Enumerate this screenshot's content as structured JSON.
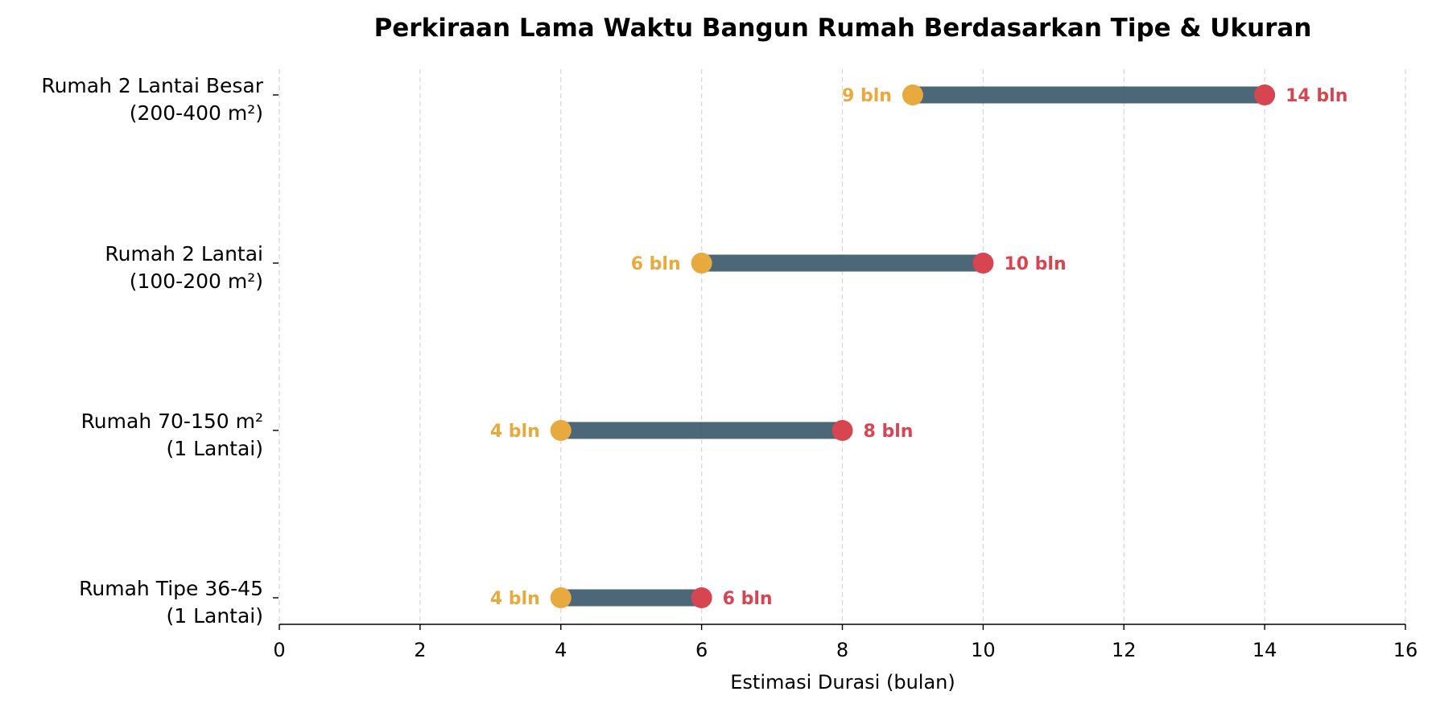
{
  "chart_data": {
    "type": "dumbbell",
    "title": "Perkiraan Lama Waktu Bangun Rumah Berdasarkan Tipe & Ukuran",
    "xlabel": "Estimasi Durasi (bulan)",
    "ylabel": "",
    "xlim": [
      0,
      16
    ],
    "xticks": [
      0,
      2,
      4,
      6,
      8,
      10,
      12,
      14,
      16
    ],
    "grid": "vertical dashed",
    "unit_suffix": "bln",
    "colors": {
      "min_point": "#E8A93E",
      "max_point": "#D64550",
      "range_bar": "#3D5A6C",
      "grid": "#d9d9d9",
      "axis": "#000000"
    },
    "categories": [
      {
        "line1": "Rumah 2 Lantai Besar",
        "line2": "(200-400 m²)",
        "min": 9,
        "max": 14,
        "min_label": "9 bln",
        "max_label": "14 bln"
      },
      {
        "line1": "Rumah 2 Lantai",
        "line2": "(100-200 m²)",
        "min": 6,
        "max": 10,
        "min_label": "6 bln",
        "max_label": "10 bln"
      },
      {
        "line1": "Rumah 70-150 m²",
        "line2": "(1 Lantai)",
        "min": 4,
        "max": 8,
        "min_label": "4 bln",
        "max_label": "8 bln"
      },
      {
        "line1": "Rumah Tipe 36-45",
        "line2": "(1 Lantai)",
        "min": 4,
        "max": 6,
        "min_label": "4 bln",
        "max_label": "6 bln"
      }
    ]
  }
}
